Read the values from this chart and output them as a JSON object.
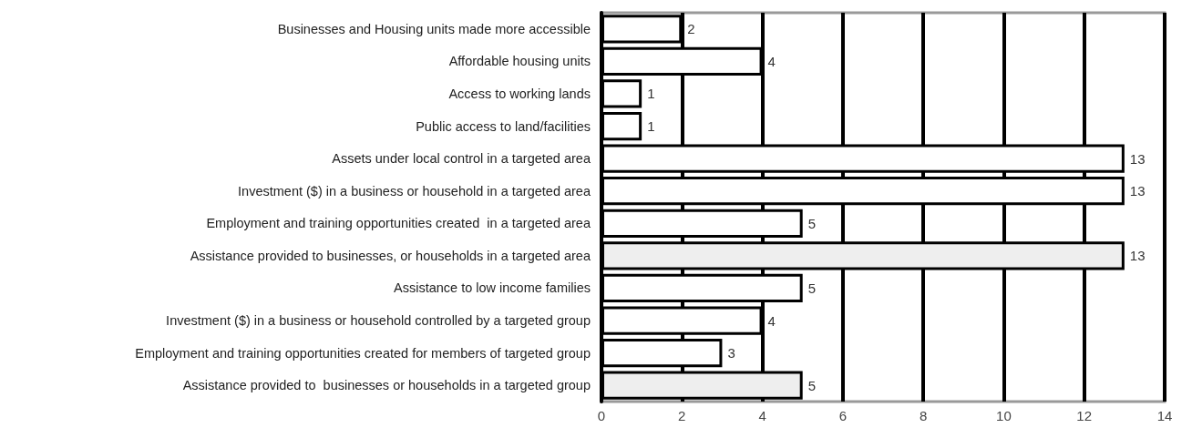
{
  "chart_data": {
    "type": "bar",
    "orientation": "horizontal",
    "categories": [
      "Businesses and Housing units made more accessible",
      "Affordable housing units",
      "Access to working lands",
      "Public access to land/facilities",
      "Assets under local control in a targeted area",
      "Investment ($) in a business or household in a targeted area",
      "Employment and training opportunities created  in a targeted area",
      "Assistance provided to businesses, or households in a targeted area",
      "Assistance to low income families",
      "Investment ($) in a business or household controlled by a targeted group",
      "Employment and training opportunities created for members of targeted group",
      "Assistance provided to  businesses or households in a targeted group"
    ],
    "values": [
      2,
      4,
      1,
      1,
      13,
      13,
      5,
      13,
      5,
      4,
      3,
      5
    ],
    "colors": [
      "#ffffff",
      "#ffffff",
      "#ffffff",
      "#ffffff",
      "#ffffff",
      "#ffffff",
      "#ffffff",
      "#eeeeee",
      "#ffffff",
      "#ffffff",
      "#ffffff",
      "#eeeeee"
    ],
    "xlim": [
      0,
      14
    ],
    "xticks": [
      0,
      2,
      4,
      6,
      8,
      10,
      12,
      14
    ],
    "grid": "x",
    "data_labels": true
  }
}
